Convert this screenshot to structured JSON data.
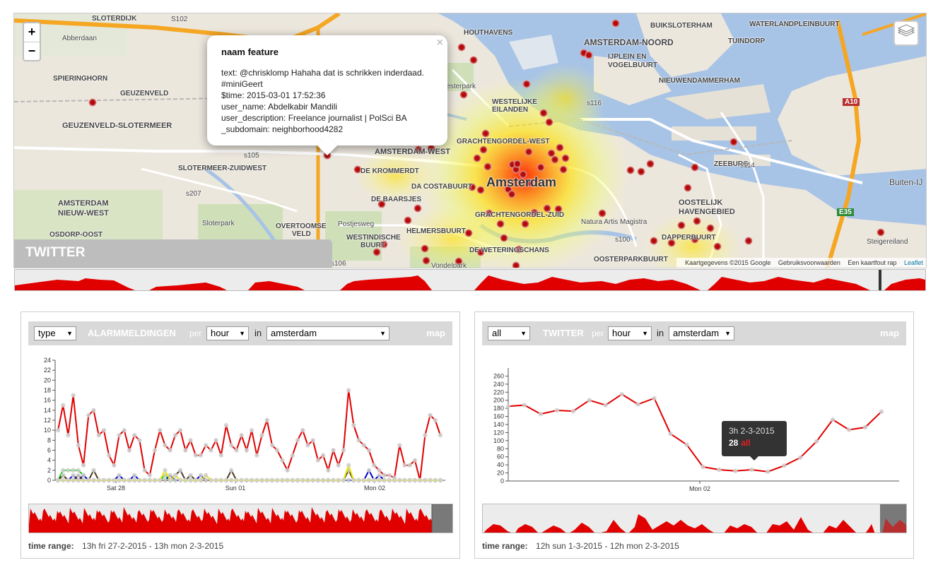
{
  "map": {
    "zoom_in": "+",
    "zoom_out": "−",
    "title": "TWITTER",
    "attribution": [
      "Kaartgegevens ©2015 Google",
      "Gebruiksvoorwaarden",
      "Een kaartfout rap"
    ],
    "leaflet": "Leaflet",
    "labels": {
      "abberdaan": "Abberdaan",
      "slotermeer": "SLOTERDIJK",
      "spieringhorn": "SPIERINGHORN",
      "geuzenveld": "GEUZENVELD",
      "geuzenveld_sm": "GEUZENVELD-SLOTERMEER",
      "slotermeer_zw": "SLOTERMEER-ZUIDWEST",
      "amsterdam_nw": "AMSTERDAM",
      "nieuw_west": "NIEUW-WEST",
      "osdorp_oost": "OSDORP-OOST",
      "sloterpark": "Sloterpark",
      "overtoomse": "OVERTOOMSE",
      "veld": "VELD",
      "westindische": "WESTINDISCHE",
      "buurt": "BUURT",
      "amsterdam_west": "AMSTERDAM-WEST",
      "de_krommerdt": "DE KROMMERDT",
      "da_costabuurt": "DA COSTABUURT",
      "de_baarsjes": "DE BAARSJES",
      "helmersbuurt": "HELMERSBUURT",
      "amsterdam": "Amsterdam",
      "houthavens": "HOUTHAVENS",
      "westerpark": "Westerpark",
      "westelijke": "WESTELIJKE",
      "eilanden": "EILANDEN",
      "grachtengordel_w": "GRACHTENGORDEL-WEST",
      "grachtengordel_z": "GRACHTENGORDEL-ZUID",
      "amsterdam_noord": "AMSTERDAM-NOORD",
      "ijplein": "IJPLEIN EN",
      "vogelbuurt": "VOGELBUURT",
      "nieuwendammerham": "NIEUWENDAMMERHAM",
      "tuindorp": "TUINDORP",
      "buiksloterham": "BUIKSLOTERHAM",
      "waterlandplein": "WATERLANDPLEINBUURT",
      "zeeburg": "ZEEBURG",
      "oostelijk": "OOSTELIJK",
      "havengebied": "HAVENGEBIED",
      "natura": "Natura Artis Magistra",
      "dapperbuurt": "DAPPERBUURT",
      "oosterparkbuurt": "OOSTERPARKBUURT",
      "steigereiland": "Steigereiland",
      "buiten_ij": "Buiten-IJ",
      "weteringschans": "DE WETERINGSCHANS",
      "vondelpark": "Vondelpark",
      "postjesweg": "Postjesweg",
      "a10": "A10",
      "e35": "E35",
      "s102": "S102",
      "s105": "s105",
      "s116": "s116",
      "s114": "s114",
      "s100": "s100",
      "s106": "s106",
      "s207": "s207"
    },
    "popup": {
      "title": "naam feature",
      "close": "×",
      "lines": [
        "text: @chrisklomp Hahaha dat is schrikken inderdaad.",
        "#miniGeert",
        "$time: 2015-03-01 17:52:36",
        "user_name: Abdelkabir Mandili",
        "user_description: Freelance journalist | PolSci BA",
        "_subdomain: neighborhood4282"
      ]
    }
  },
  "left_panel": {
    "select_type": "type",
    "title": "ALARMMELDINGEN",
    "per": "per",
    "select_interval": "hour",
    "in": "in",
    "select_area": "amsterdam",
    "map_link": "map",
    "x_ticks": [
      "Sat 28",
      "Sun 01",
      "Mon 02"
    ],
    "time_range_label": "time range:",
    "time_range": "13h fri 27-2-2015 - 13h mon 2-3-2015"
  },
  "right_panel": {
    "select_type": "all",
    "title": "TWITTER",
    "per": "per",
    "select_interval": "hour",
    "in": "in",
    "select_area": "amsterdam",
    "map_link": "map",
    "x_ticks": [
      "Mon 02"
    ],
    "tooltip": {
      "time": "3h 2-3-2015",
      "value": "28",
      "series": "all"
    },
    "time_range_label": "time range:",
    "time_range": "12h sun 1-3-2015 - 12h mon 2-3-2015"
  },
  "colors": {
    "red": "#e00000",
    "water": "#a7c3e6",
    "highway": "#f5a623",
    "panel_header": "#d9d9d9"
  },
  "chart_data": [
    {
      "type": "line",
      "title": "ALARMMELDINGEN",
      "ylim": [
        0,
        24
      ],
      "y_ticks": [
        0,
        2,
        4,
        6,
        8,
        10,
        12,
        14,
        16,
        18,
        20,
        22,
        24
      ],
      "x_tick_labels": [
        "Sat 28",
        "Sun 01",
        "Mon 02"
      ],
      "series": [
        {
          "color": "#e00000",
          "values": [
            10,
            15,
            9,
            17,
            7,
            3,
            13,
            14,
            9,
            10,
            5,
            3,
            9,
            10,
            6,
            9,
            8,
            2,
            1,
            6,
            10,
            7,
            6,
            9,
            10,
            6,
            8,
            5,
            5,
            7,
            6,
            8,
            5,
            11,
            7,
            6,
            9,
            6,
            10,
            5,
            9,
            12,
            7,
            6,
            4,
            2,
            5,
            8,
            10,
            7,
            8,
            4,
            5,
            2,
            6,
            3,
            6,
            18,
            11,
            8,
            7,
            6,
            3,
            2,
            1,
            1,
            0.5,
            7,
            3,
            3,
            4,
            0,
            9,
            13,
            12,
            9
          ]
        },
        {
          "color": "#00cc00",
          "values": [
            0,
            2,
            2,
            2,
            2,
            1,
            0,
            0,
            0,
            0,
            0,
            0,
            0,
            0,
            0,
            0,
            0,
            0,
            0,
            0,
            0,
            1,
            0,
            0,
            0,
            0,
            0,
            0,
            0,
            0,
            0,
            0,
            0,
            0,
            0,
            0,
            0,
            0,
            0,
            0,
            0,
            0,
            0,
            0,
            0,
            0,
            0,
            0,
            0,
            0,
            0,
            0,
            0,
            0,
            0,
            0,
            0,
            0,
            0,
            0,
            0,
            0,
            0,
            0,
            0,
            0,
            0,
            0,
            0,
            0,
            0,
            0,
            0,
            0,
            0,
            0
          ]
        },
        {
          "color": "#0000cc",
          "values": [
            0,
            1,
            0,
            1,
            0,
            1,
            0,
            0,
            0,
            0,
            0,
            0,
            1,
            0,
            0,
            1,
            0,
            0,
            0,
            0,
            0,
            0,
            1,
            0,
            0,
            0,
            0,
            0,
            1,
            0,
            0,
            0,
            0,
            0,
            0,
            0,
            0,
            0,
            0,
            0,
            0,
            0,
            0,
            0,
            0,
            0,
            0,
            0,
            0,
            0,
            0,
            0,
            0,
            0,
            0,
            0,
            0,
            0,
            0,
            0,
            0,
            2,
            0,
            1,
            0,
            0,
            0,
            0,
            0,
            0,
            0,
            0,
            0,
            0,
            0,
            0
          ]
        },
        {
          "color": "#4a3a20",
          "values": [
            0,
            1,
            0,
            0,
            1,
            0,
            0,
            2,
            0,
            0,
            0,
            0,
            0,
            0,
            0,
            0,
            0,
            0,
            0,
            0,
            0,
            0,
            0,
            1,
            2,
            0,
            1,
            0,
            0,
            0,
            0,
            0,
            0,
            0,
            2,
            0,
            0,
            0,
            0,
            0,
            0,
            0,
            0,
            0,
            0,
            0,
            0,
            0,
            0,
            0,
            0,
            0,
            0,
            0,
            0,
            0,
            0,
            2,
            0,
            0,
            0,
            0,
            0,
            0,
            0,
            0,
            0,
            0,
            0,
            0,
            0,
            0,
            0,
            0,
            0,
            0
          ]
        },
        {
          "color": "#e8e800",
          "values": [
            0,
            0,
            0,
            0,
            0,
            0,
            0,
            0,
            0,
            0,
            0,
            0,
            0,
            0,
            0,
            0,
            0,
            0,
            0,
            0,
            0,
            2,
            0,
            1,
            0,
            0,
            0,
            0,
            0,
            1,
            0,
            0,
            0,
            0,
            0,
            0,
            0,
            0,
            0,
            0,
            0,
            0,
            0,
            0,
            0,
            0,
            0,
            0,
            0,
            0,
            0,
            0,
            0,
            0,
            0,
            0,
            0,
            3,
            0,
            0,
            0,
            0,
            0,
            0,
            0,
            0,
            0,
            0,
            0,
            0,
            0,
            0,
            0,
            0,
            0,
            0
          ]
        }
      ]
    },
    {
      "type": "line",
      "title": "TWITTER",
      "ylim": [
        0,
        280
      ],
      "y_ticks": [
        0,
        20,
        40,
        60,
        80,
        100,
        120,
        140,
        160,
        180,
        200,
        220,
        240,
        260
      ],
      "x_tick_labels": [
        "Mon 02"
      ],
      "series": [
        {
          "color": "#e00000",
          "values": [
            185,
            188,
            166,
            175,
            173,
            200,
            188,
            215,
            190,
            205,
            117,
            90,
            35,
            28,
            25,
            28,
            23,
            38,
            58,
            98,
            152,
            127,
            133,
            172
          ]
        }
      ]
    }
  ]
}
